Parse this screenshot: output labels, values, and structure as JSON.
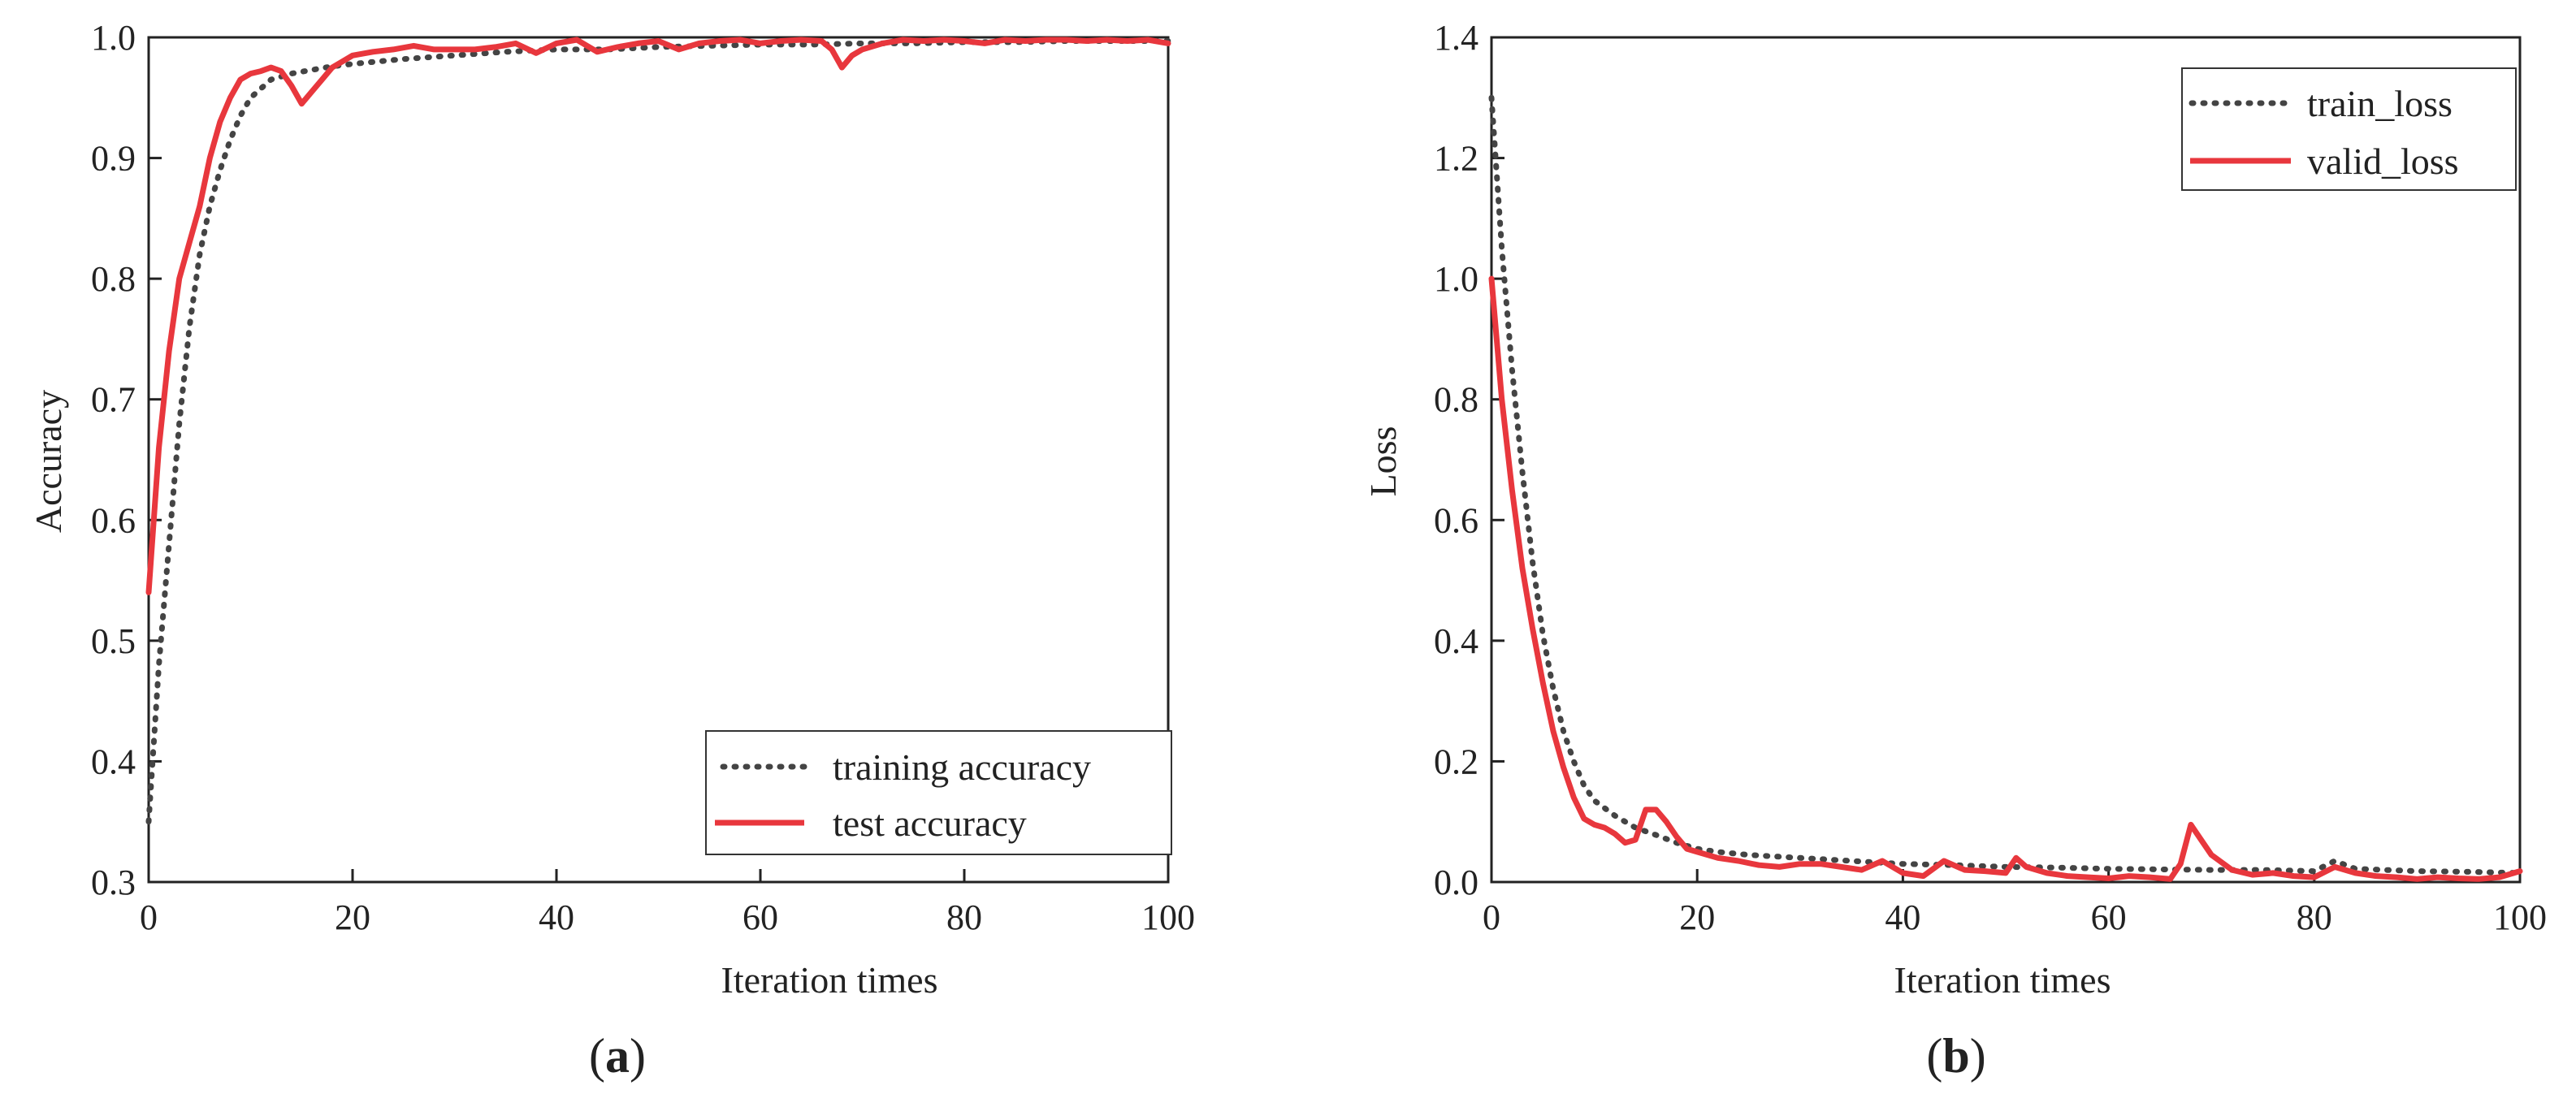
{
  "chart_data": [
    {
      "id": "a",
      "type": "line",
      "panel_label_open": "(",
      "panel_label_letter": "a",
      "panel_label_close": ")",
      "title": "",
      "xlabel": "Iteration times",
      "ylabel": "Accuracy",
      "xlim": [
        0,
        100
      ],
      "ylim": [
        0.3,
        1.0
      ],
      "xticks": [
        0,
        20,
        40,
        60,
        80,
        100
      ],
      "xtick_labels": [
        "0",
        "20",
        "40",
        "60",
        "80",
        "100"
      ],
      "yticks": [
        0.3,
        0.4,
        0.5,
        0.6,
        0.7,
        0.8,
        0.9,
        1.0
      ],
      "ytick_labels": [
        "0.3",
        "0.4",
        "0.5",
        "0.6",
        "0.7",
        "0.8",
        "0.9",
        "1.0"
      ],
      "legend_position": "bottom-right",
      "series": [
        {
          "name": "training accuracy",
          "style": "dotted",
          "color": "#444444",
          "x": [
            0,
            1,
            2,
            3,
            4,
            5,
            6,
            7,
            8,
            9,
            10,
            12,
            14,
            16,
            18,
            20,
            25,
            30,
            35,
            40,
            45,
            50,
            55,
            60,
            65,
            70,
            75,
            80,
            85,
            90,
            95,
            100
          ],
          "y": [
            0.35,
            0.48,
            0.58,
            0.68,
            0.76,
            0.82,
            0.86,
            0.89,
            0.915,
            0.935,
            0.95,
            0.965,
            0.97,
            0.973,
            0.976,
            0.978,
            0.982,
            0.985,
            0.988,
            0.99,
            0.99,
            0.992,
            0.993,
            0.994,
            0.994,
            0.995,
            0.995,
            0.996,
            0.996,
            0.997,
            0.997,
            0.997
          ]
        },
        {
          "name": "test accuracy",
          "style": "solid",
          "color": "#e8373d",
          "x": [
            0,
            1,
            2,
            3,
            4,
            5,
            6,
            7,
            8,
            9,
            10,
            11,
            12,
            13,
            14,
            15,
            16,
            17,
            18,
            19,
            20,
            22,
            24,
            26,
            28,
            30,
            32,
            34,
            36,
            38,
            40,
            42,
            44,
            46,
            48,
            50,
            52,
            54,
            56,
            58,
            60,
            62,
            64,
            66,
            67,
            68,
            69,
            70,
            72,
            74,
            76,
            78,
            80,
            82,
            84,
            86,
            88,
            90,
            92,
            94,
            96,
            98,
            100
          ],
          "y": [
            0.54,
            0.66,
            0.74,
            0.8,
            0.83,
            0.86,
            0.9,
            0.93,
            0.95,
            0.965,
            0.97,
            0.972,
            0.975,
            0.972,
            0.96,
            0.945,
            0.955,
            0.965,
            0.975,
            0.98,
            0.985,
            0.988,
            0.99,
            0.993,
            0.99,
            0.99,
            0.99,
            0.992,
            0.995,
            0.987,
            0.995,
            0.998,
            0.988,
            0.992,
            0.995,
            0.997,
            0.99,
            0.995,
            0.997,
            0.998,
            0.995,
            0.997,
            0.998,
            0.997,
            0.99,
            0.975,
            0.985,
            0.99,
            0.995,
            0.998,
            0.997,
            0.998,
            0.997,
            0.995,
            0.998,
            0.997,
            0.998,
            0.998,
            0.997,
            0.998,
            0.997,
            0.998,
            0.995
          ]
        }
      ]
    },
    {
      "id": "b",
      "type": "line",
      "panel_label_open": "(",
      "panel_label_letter": "b",
      "panel_label_close": ")",
      "title": "",
      "xlabel": "Iteration times",
      "ylabel": "Loss",
      "xlim": [
        0,
        100
      ],
      "ylim": [
        0.0,
        1.4
      ],
      "xticks": [
        0,
        20,
        40,
        60,
        80,
        100
      ],
      "xtick_labels": [
        "0",
        "20",
        "40",
        "60",
        "80",
        "100"
      ],
      "yticks": [
        0.0,
        0.2,
        0.4,
        0.6,
        0.8,
        1.0,
        1.2,
        1.4
      ],
      "ytick_labels": [
        "0.0",
        "0.2",
        "0.4",
        "0.6",
        "0.8",
        "1.0",
        "1.2",
        "1.4"
      ],
      "legend_position": "top-right",
      "series": [
        {
          "name": "train_loss",
          "style": "dotted",
          "color": "#444444",
          "x": [
            0,
            1,
            2,
            3,
            4,
            5,
            6,
            7,
            8,
            9,
            10,
            12,
            14,
            16,
            18,
            20,
            22,
            25,
            30,
            35,
            40,
            45,
            50,
            55,
            60,
            65,
            70,
            75,
            80,
            82,
            84,
            90,
            95,
            100
          ],
          "y": [
            1.3,
            1.05,
            0.85,
            0.68,
            0.53,
            0.41,
            0.32,
            0.25,
            0.2,
            0.16,
            0.135,
            0.11,
            0.09,
            0.078,
            0.065,
            0.055,
            0.05,
            0.045,
            0.04,
            0.035,
            0.03,
            0.028,
            0.025,
            0.024,
            0.022,
            0.021,
            0.02,
            0.02,
            0.018,
            0.035,
            0.022,
            0.018,
            0.017,
            0.015
          ]
        },
        {
          "name": "valid_loss",
          "style": "solid",
          "color": "#e8373d",
          "x": [
            0,
            1,
            2,
            3,
            4,
            5,
            6,
            7,
            8,
            9,
            10,
            11,
            12,
            13,
            14,
            15,
            16,
            17,
            18,
            19,
            20,
            22,
            24,
            26,
            28,
            30,
            32,
            34,
            36,
            38,
            40,
            42,
            44,
            46,
            48,
            50,
            51,
            52,
            54,
            56,
            58,
            60,
            62,
            64,
            66,
            67,
            68,
            69,
            70,
            72,
            74,
            76,
            78,
            80,
            82,
            84,
            86,
            88,
            90,
            92,
            94,
            96,
            98,
            100
          ],
          "y": [
            1.0,
            0.8,
            0.65,
            0.52,
            0.42,
            0.33,
            0.25,
            0.19,
            0.14,
            0.105,
            0.095,
            0.09,
            0.08,
            0.065,
            0.07,
            0.12,
            0.12,
            0.1,
            0.075,
            0.055,
            0.05,
            0.04,
            0.035,
            0.028,
            0.025,
            0.03,
            0.03,
            0.025,
            0.02,
            0.035,
            0.015,
            0.01,
            0.035,
            0.02,
            0.018,
            0.015,
            0.04,
            0.025,
            0.015,
            0.01,
            0.008,
            0.006,
            0.01,
            0.008,
            0.005,
            0.03,
            0.095,
            0.07,
            0.045,
            0.02,
            0.012,
            0.015,
            0.01,
            0.008,
            0.025,
            0.015,
            0.01,
            0.008,
            0.005,
            0.008,
            0.006,
            0.005,
            0.008,
            0.018
          ]
        }
      ]
    }
  ]
}
